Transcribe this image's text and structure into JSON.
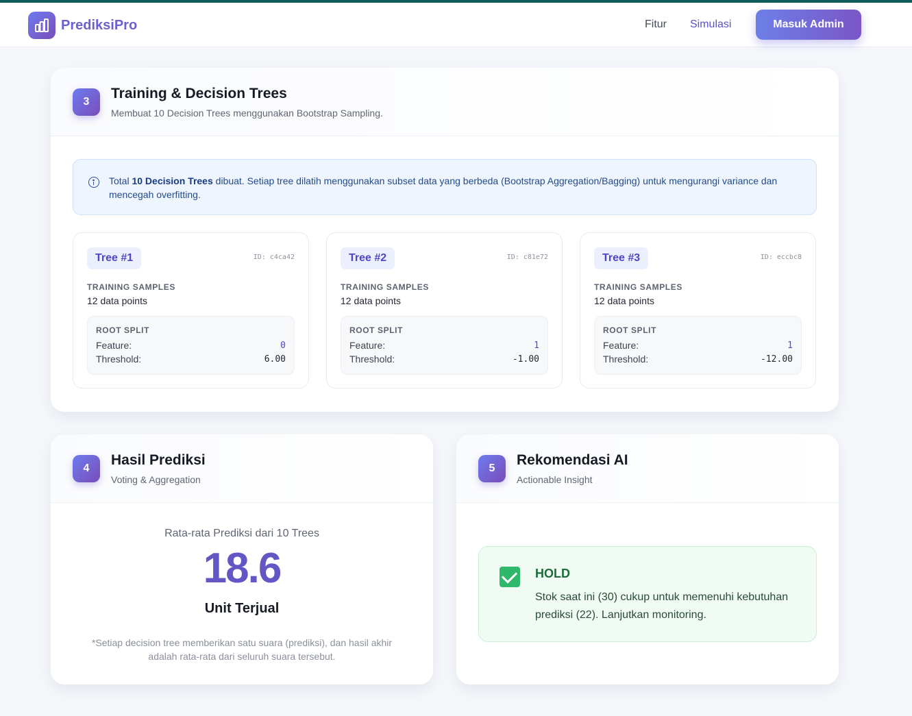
{
  "navbar": {
    "brand": "PrediksiPro",
    "brand_icon": "bar-chart-icon",
    "links": [
      "Fitur",
      "Simulasi"
    ],
    "admin_button": "Masuk Admin"
  },
  "training": {
    "step": "3",
    "title": "Training & Decision Trees",
    "subtitle": "Membuat 10 Decision Trees menggunakan Bootstrap Sampling.",
    "info": {
      "prefix": "Total ",
      "highlight": "10 Decision Trees",
      "suffix": " dibuat. Setiap tree dilatih menggunakan subset data yang berbeda (Bootstrap Aggregation/Bagging) untuk mengurangi variance dan mencegah overfitting."
    },
    "trees": [
      {
        "name": "Tree #1",
        "id": "ID: c4ca42",
        "samples_label": "TRAINING SAMPLES",
        "samples": "12 data points",
        "split_label": "ROOT SPLIT",
        "feature_label": "Feature:",
        "feature": "0",
        "threshold_label": "Threshold:",
        "threshold": "6.00"
      },
      {
        "name": "Tree #2",
        "id": "ID: c81e72",
        "samples_label": "TRAINING SAMPLES",
        "samples": "12 data points",
        "split_label": "ROOT SPLIT",
        "feature_label": "Feature:",
        "feature": "1",
        "threshold_label": "Threshold:",
        "threshold": "-1.00"
      },
      {
        "name": "Tree #3",
        "id": "ID: eccbc8",
        "samples_label": "TRAINING SAMPLES",
        "samples": "12 data points",
        "split_label": "ROOT SPLIT",
        "feature_label": "Feature:",
        "feature": "1",
        "threshold_label": "Threshold:",
        "threshold": "-12.00"
      }
    ]
  },
  "prediction": {
    "step": "4",
    "title": "Hasil Prediksi",
    "subtitle": "Voting & Aggregation",
    "label": "Rata-rata Prediksi dari 10 Trees",
    "value": "18.6",
    "unit": "Unit Terjual",
    "note": "*Setiap decision tree memberikan satu suara (prediksi), dan hasil akhir adalah rata-rata dari seluruh suara tersebut."
  },
  "recommendation": {
    "step": "5",
    "title": "Rekomendasi AI",
    "subtitle": "Actionable Insight",
    "status": "HOLD",
    "text": "Stok saat ini (30) cukup untuk memenuhi kebutuhan prediksi (22). Lanjutkan monitoring."
  }
}
